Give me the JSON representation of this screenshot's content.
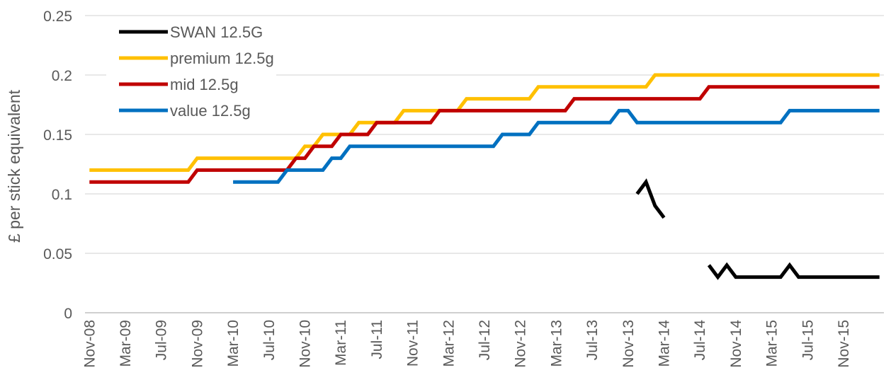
{
  "chart_data": {
    "type": "line",
    "title": "",
    "xlabel": "",
    "ylabel": "£ per stick equivalent",
    "ylim": [
      0,
      0.25
    ],
    "yticks": [
      "0",
      "0.05",
      "0.1",
      "0.15",
      "0.2",
      "0.25"
    ],
    "x_tick_labels": [
      "Nov-08",
      "Mar-09",
      "Jul-09",
      "Nov-09",
      "Mar-10",
      "Jul-10",
      "Nov-10",
      "Mar-11",
      "Jul-11",
      "Nov-11",
      "Mar-12",
      "Jul-12",
      "Nov-12",
      "Mar-13",
      "Jul-13",
      "Nov-13",
      "Mar-14",
      "Jul-14",
      "Nov-14",
      "Mar-15",
      "Jul-15",
      "Nov-15"
    ],
    "x_start": "Nov-08",
    "grid": "horizontal",
    "legend_position": "top-left",
    "series": [
      {
        "name": "SWAN 12.5G",
        "color": "#000000",
        "points": [
          [
            "Dec-13",
            0.1
          ],
          [
            "Jan-14",
            0.11
          ],
          [
            "Feb-14",
            0.09
          ],
          [
            "Mar-14",
            0.08
          ],
          null,
          [
            "Aug-14",
            0.04
          ],
          [
            "Sep-14",
            0.03
          ],
          [
            "Oct-14",
            0.04
          ],
          [
            "Nov-14",
            0.03
          ],
          [
            "Dec-14",
            0.03
          ],
          [
            "Jan-15",
            0.03
          ],
          [
            "Feb-15",
            0.03
          ],
          [
            "Mar-15",
            0.03
          ],
          [
            "Apr-15",
            0.03
          ],
          [
            "May-15",
            0.04
          ],
          [
            "Jun-15",
            0.03
          ],
          [
            "Jul-15",
            0.03
          ],
          [
            "Aug-15",
            0.03
          ],
          [
            "Sep-15",
            0.03
          ],
          [
            "Oct-15",
            0.03
          ],
          [
            "Nov-15",
            0.03
          ],
          [
            "Dec-15",
            0.03
          ],
          [
            "Jan-16",
            0.03
          ],
          [
            "Feb-16",
            0.03
          ],
          [
            "Mar-16",
            0.03
          ]
        ]
      },
      {
        "name": "premium 12.5g",
        "color": "#FFC000",
        "points": [
          [
            "Nov-08",
            0.12
          ],
          [
            "Oct-09",
            0.12
          ],
          [
            "Nov-09",
            0.13
          ],
          [
            "Oct-10",
            0.13
          ],
          [
            "Nov-10",
            0.14
          ],
          [
            "Dec-10",
            0.14
          ],
          [
            "Jan-11",
            0.15
          ],
          [
            "Apr-11",
            0.15
          ],
          [
            "May-11",
            0.16
          ],
          [
            "Sep-11",
            0.16
          ],
          [
            "Oct-11",
            0.17
          ],
          [
            "Apr-12",
            0.17
          ],
          [
            "May-12",
            0.18
          ],
          [
            "Dec-12",
            0.18
          ],
          [
            "Jan-13",
            0.19
          ],
          [
            "Jan-14",
            0.19
          ],
          [
            "Feb-14",
            0.2
          ],
          [
            "Mar-16",
            0.2
          ]
        ]
      },
      {
        "name": "mid 12.5g",
        "color": "#C00000",
        "points": [
          [
            "Nov-08",
            0.11
          ],
          [
            "Oct-09",
            0.11
          ],
          [
            "Nov-09",
            0.12
          ],
          [
            "Sep-10",
            0.12
          ],
          [
            "Oct-10",
            0.13
          ],
          [
            "Nov-10",
            0.13
          ],
          [
            "Dec-10",
            0.14
          ],
          [
            "Feb-11",
            0.14
          ],
          [
            "Mar-11",
            0.15
          ],
          [
            "Jun-11",
            0.15
          ],
          [
            "Jul-11",
            0.16
          ],
          [
            "Jan-12",
            0.16
          ],
          [
            "Feb-12",
            0.17
          ],
          [
            "Apr-13",
            0.17
          ],
          [
            "May-13",
            0.18
          ],
          [
            "Jul-14",
            0.18
          ],
          [
            "Aug-14",
            0.19
          ],
          [
            "Mar-16",
            0.19
          ]
        ]
      },
      {
        "name": "value 12.5g",
        "color": "#0070C0",
        "points": [
          [
            "Mar-10",
            0.11
          ],
          [
            "Aug-10",
            0.11
          ],
          [
            "Sep-10",
            0.12
          ],
          [
            "Jan-11",
            0.12
          ],
          [
            "Feb-11",
            0.13
          ],
          [
            "Mar-11",
            0.13
          ],
          [
            "Apr-11",
            0.14
          ],
          [
            "Aug-12",
            0.14
          ],
          [
            "Sep-12",
            0.15
          ],
          [
            "Dec-12",
            0.15
          ],
          [
            "Jan-13",
            0.16
          ],
          [
            "Jun-13",
            0.16
          ],
          [
            "Jul-13",
            0.16
          ],
          [
            "Sep-13",
            0.16
          ],
          [
            "Oct-13",
            0.17
          ],
          [
            "Nov-13",
            0.17
          ],
          [
            "Dec-13",
            0.16
          ],
          [
            "Apr-15",
            0.16
          ],
          [
            "May-15",
            0.17
          ],
          [
            "Mar-16",
            0.17
          ]
        ]
      }
    ]
  }
}
